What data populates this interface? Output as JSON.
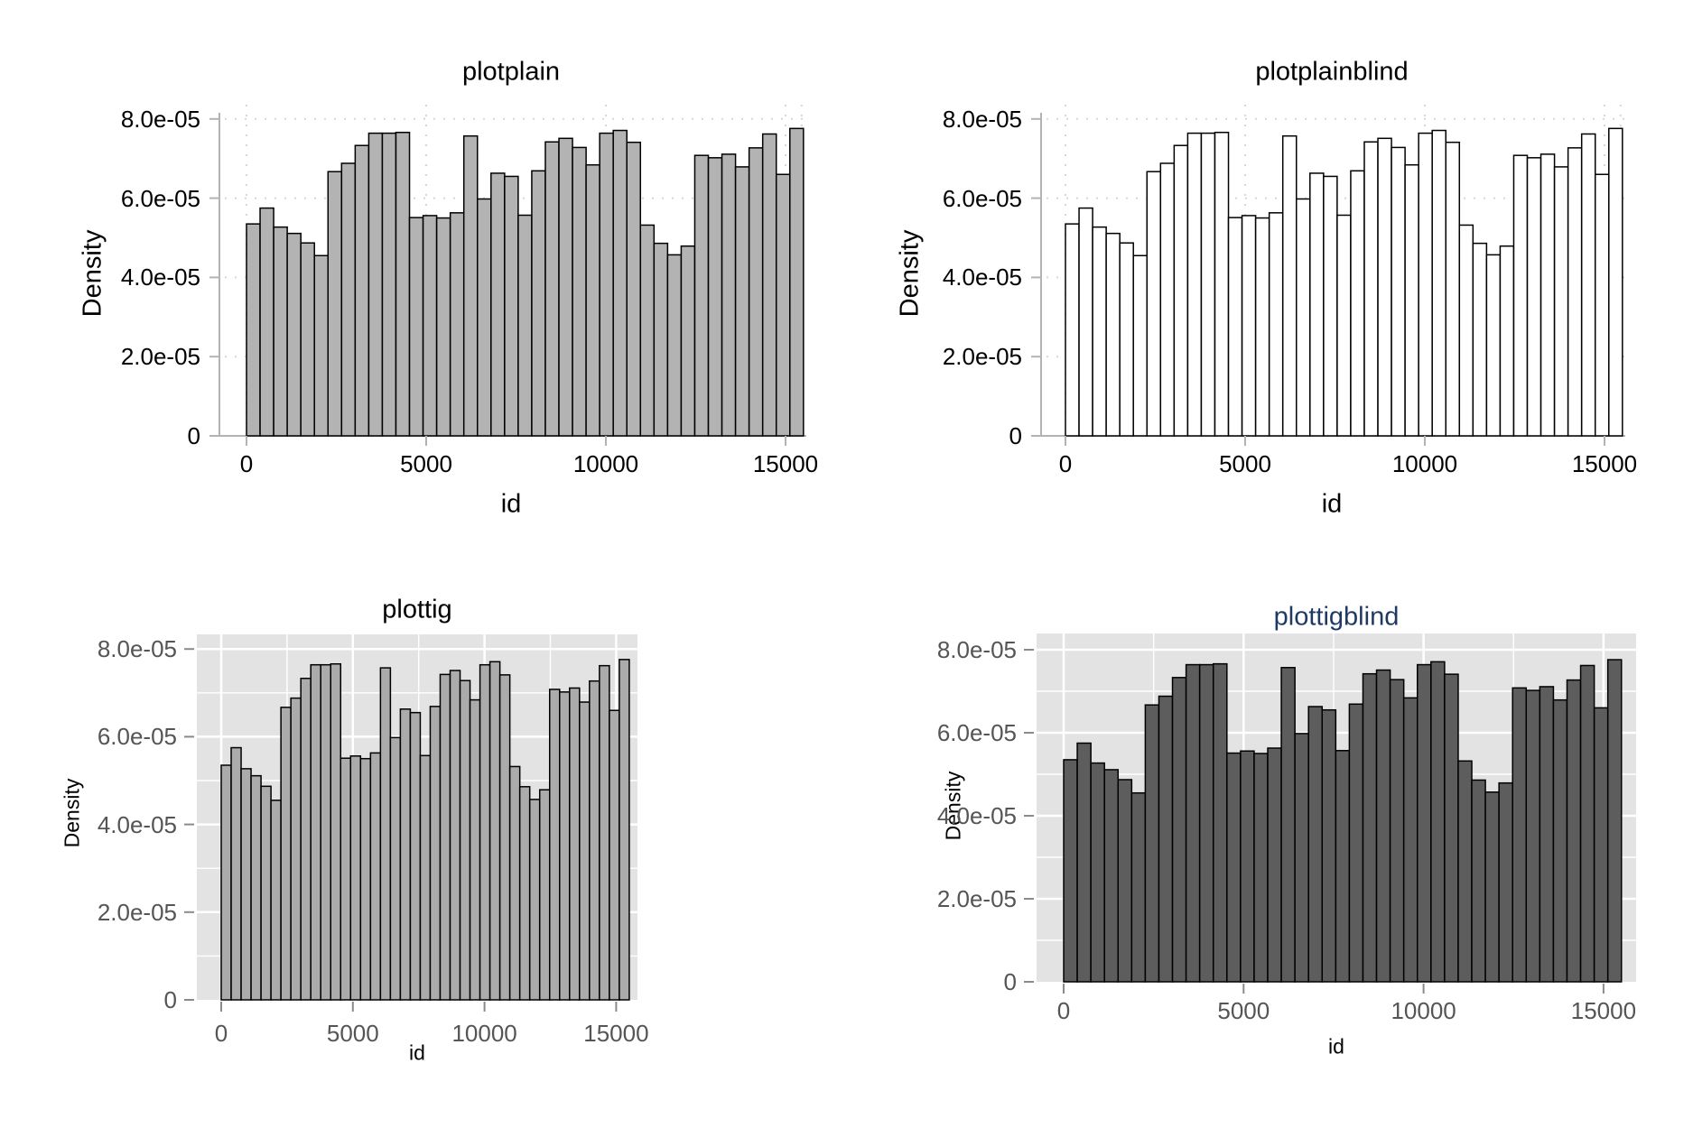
{
  "figure": {
    "background": "#ffffff",
    "panels": [
      "plotplain",
      "plotplainblind",
      "plottig",
      "plottigblind"
    ]
  },
  "chart_data": [
    {
      "type": "bar",
      "subtype": "histogram",
      "title": "plotplain",
      "title_color": "#000000",
      "xlabel": "id",
      "ylabel": "Density",
      "xlim": [
        0,
        15500
      ],
      "ylim": [
        0,
        8.3e-05
      ],
      "x_tick_values": [
        0,
        5000,
        10000,
        15000
      ],
      "x_tick_labels": [
        "0",
        "5000",
        "10000",
        "15000"
      ],
      "y_tick_values": [
        0,
        2e-05,
        4e-05,
        6e-05,
        8e-05
      ],
      "y_tick_labels": [
        "0",
        "2.0e-05",
        "4.0e-05",
        "6.0e-05",
        "8.0e-05"
      ],
      "bin_start": 0,
      "bin_width": 378,
      "grid_style": "dotted",
      "grid_color": "#d6d6d6",
      "axis_color": "#b3b3b3",
      "tick_label_color": "#000000",
      "plot_bg": "#ffffff",
      "bar_fill": "#b3b3b3",
      "bar_stroke": "#000000",
      "values": [
        5.35e-05,
        5.75e-05,
        5.27e-05,
        5.11e-05,
        4.87e-05,
        4.55e-05,
        6.67e-05,
        6.88e-05,
        7.33e-05,
        7.64e-05,
        7.64e-05,
        7.66e-05,
        5.51e-05,
        5.56e-05,
        5.5e-05,
        5.63e-05,
        7.57e-05,
        5.98e-05,
        6.63e-05,
        6.55e-05,
        5.57e-05,
        6.69e-05,
        7.42e-05,
        7.51e-05,
        7.28e-05,
        6.84e-05,
        7.64e-05,
        7.71e-05,
        7.41e-05,
        5.32e-05,
        4.86e-05,
        4.57e-05,
        4.79e-05,
        7.08e-05,
        7.02e-05,
        7.11e-05,
        6.79e-05,
        7.27e-05,
        7.62e-05,
        6.6e-05,
        7.76e-05
      ]
    },
    {
      "type": "bar",
      "subtype": "histogram",
      "title": "plotplainblind",
      "title_color": "#000000",
      "xlabel": "id",
      "ylabel": "Density",
      "xlim": [
        0,
        15500
      ],
      "ylim": [
        0,
        8.3e-05
      ],
      "x_tick_values": [
        0,
        5000,
        10000,
        15000
      ],
      "x_tick_labels": [
        "0",
        "5000",
        "10000",
        "15000"
      ],
      "y_tick_values": [
        0,
        2e-05,
        4e-05,
        6e-05,
        8e-05
      ],
      "y_tick_labels": [
        "0",
        "2.0e-05",
        "4.0e-05",
        "6.0e-05",
        "8.0e-05"
      ],
      "bin_start": 0,
      "bin_width": 378,
      "grid_style": "dotted",
      "grid_color": "#d6d6d6",
      "axis_color": "#b3b3b3",
      "tick_label_color": "#000000",
      "plot_bg": "#ffffff",
      "bar_fill": "#ffffff",
      "bar_stroke": "#000000",
      "values": [
        5.35e-05,
        5.75e-05,
        5.27e-05,
        5.11e-05,
        4.87e-05,
        4.55e-05,
        6.67e-05,
        6.88e-05,
        7.33e-05,
        7.64e-05,
        7.64e-05,
        7.66e-05,
        5.51e-05,
        5.56e-05,
        5.5e-05,
        5.63e-05,
        7.57e-05,
        5.98e-05,
        6.63e-05,
        6.55e-05,
        5.57e-05,
        6.69e-05,
        7.42e-05,
        7.51e-05,
        7.28e-05,
        6.84e-05,
        7.64e-05,
        7.71e-05,
        7.41e-05,
        5.32e-05,
        4.86e-05,
        4.57e-05,
        4.79e-05,
        7.08e-05,
        7.02e-05,
        7.11e-05,
        6.79e-05,
        7.27e-05,
        7.62e-05,
        6.6e-05,
        7.76e-05
      ]
    },
    {
      "type": "bar",
      "subtype": "histogram",
      "title": "plottig",
      "title_color": "#000000",
      "xlabel": "id",
      "ylabel": "Density",
      "xlim": [
        0,
        15500
      ],
      "ylim": [
        0,
        8.3e-05
      ],
      "x_tick_values": [
        0,
        5000,
        10000,
        15000
      ],
      "x_tick_labels": [
        "0",
        "5000",
        "10000",
        "15000"
      ],
      "y_tick_values": [
        0,
        2e-05,
        4e-05,
        6e-05,
        8e-05
      ],
      "y_tick_labels": [
        "0",
        "2.0e-05",
        "4.0e-05",
        "6.0e-05",
        "8.0e-05"
      ],
      "bin_start": 0,
      "bin_width": 378,
      "grid_style": "solid-white",
      "grid_color": "#ffffff",
      "axis_color": "#8a8a8a",
      "tick_label_color": "#555555",
      "plot_bg": "#e3e3e3",
      "bar_fill": "#ababab",
      "bar_stroke": "#000000",
      "values": [
        5.35e-05,
        5.75e-05,
        5.27e-05,
        5.11e-05,
        4.87e-05,
        4.55e-05,
        6.67e-05,
        6.88e-05,
        7.33e-05,
        7.64e-05,
        7.64e-05,
        7.66e-05,
        5.51e-05,
        5.56e-05,
        5.5e-05,
        5.63e-05,
        7.57e-05,
        5.98e-05,
        6.63e-05,
        6.55e-05,
        5.57e-05,
        6.69e-05,
        7.42e-05,
        7.51e-05,
        7.28e-05,
        6.84e-05,
        7.64e-05,
        7.71e-05,
        7.41e-05,
        5.32e-05,
        4.86e-05,
        4.57e-05,
        4.79e-05,
        7.08e-05,
        7.02e-05,
        7.11e-05,
        6.79e-05,
        7.27e-05,
        7.62e-05,
        6.6e-05,
        7.76e-05
      ]
    },
    {
      "type": "bar",
      "subtype": "histogram",
      "title": "plottigblind",
      "title_color": "#1e3a64",
      "xlabel": "id",
      "ylabel": "Density",
      "xlim": [
        0,
        15500
      ],
      "ylim": [
        0,
        8.3e-05
      ],
      "x_tick_values": [
        0,
        5000,
        10000,
        15000
      ],
      "x_tick_labels": [
        "0",
        "5000",
        "10000",
        "15000"
      ],
      "y_tick_values": [
        0,
        2e-05,
        4e-05,
        6e-05,
        8e-05
      ],
      "y_tick_labels": [
        "0",
        "2.0e-05",
        "4.0e-05",
        "6.0e-05",
        "8.0e-05"
      ],
      "bin_start": 0,
      "bin_width": 378,
      "grid_style": "solid-white",
      "grid_color": "#ffffff",
      "axis_color": "#8a8a8a",
      "tick_label_color": "#555555",
      "plot_bg": "#e3e3e3",
      "bar_fill": "#5d5d5d",
      "bar_stroke": "#000000",
      "values": [
        5.35e-05,
        5.75e-05,
        5.27e-05,
        5.11e-05,
        4.87e-05,
        4.55e-05,
        6.67e-05,
        6.88e-05,
        7.33e-05,
        7.64e-05,
        7.64e-05,
        7.66e-05,
        5.51e-05,
        5.56e-05,
        5.5e-05,
        5.63e-05,
        7.57e-05,
        5.98e-05,
        6.63e-05,
        6.55e-05,
        5.57e-05,
        6.69e-05,
        7.42e-05,
        7.51e-05,
        7.28e-05,
        6.84e-05,
        7.64e-05,
        7.71e-05,
        7.41e-05,
        5.32e-05,
        4.86e-05,
        4.57e-05,
        4.79e-05,
        7.08e-05,
        7.02e-05,
        7.11e-05,
        6.79e-05,
        7.27e-05,
        7.62e-05,
        6.6e-05,
        7.76e-05
      ]
    }
  ]
}
